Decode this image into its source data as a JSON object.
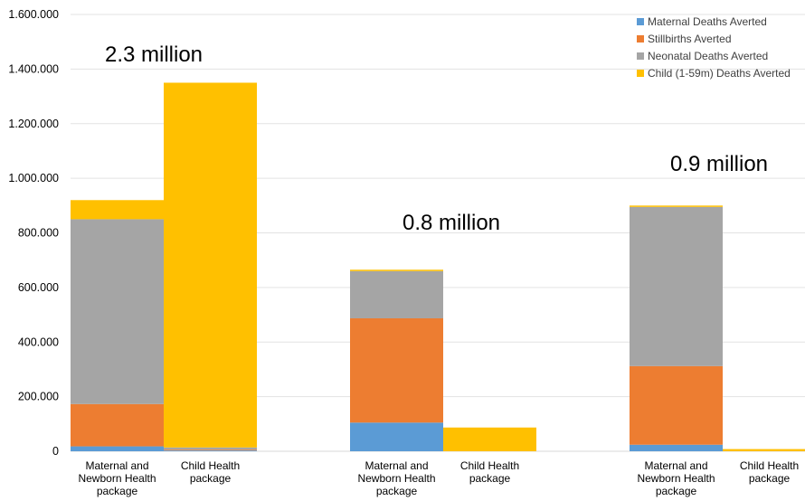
{
  "chart_data": {
    "type": "bar",
    "stacked": true,
    "title": "",
    "xlabel": "",
    "ylabel": "",
    "ylim": [
      0,
      1600000
    ],
    "y_ticks": [
      0,
      200000,
      400000,
      600000,
      800000,
      1000000,
      1200000,
      1400000,
      1600000
    ],
    "y_tick_labels": [
      "0",
      "200.000",
      "400.000",
      "600.000",
      "800.000",
      "1.000.000",
      "1.200.000",
      "1.400.000",
      "1.600.000"
    ],
    "grid": true,
    "legend_position": "top-right",
    "groups": [
      {
        "total_label": "2.3 million",
        "bars": [
          {
            "label": [
              "Maternal and",
              "Newborn Health",
              "package"
            ],
            "values": [
              18000,
              155000,
              677000,
              70000
            ]
          },
          {
            "label": [
              "Child Health",
              "package"
            ],
            "values": [
              3000,
              3000,
              8000,
              1336000
            ]
          }
        ]
      },
      {
        "total_label": "0.8 million",
        "bars": [
          {
            "label": [
              "Maternal and",
              "Newborn Health",
              "package"
            ],
            "values": [
              105000,
              382000,
              173000,
              5000
            ]
          },
          {
            "label": [
              "Child Health",
              "package"
            ],
            "values": [
              0,
              0,
              0,
              87000
            ]
          }
        ]
      },
      {
        "total_label": "0.9 million",
        "bars": [
          {
            "label": [
              "Maternal and",
              "Newborn Health",
              "package"
            ],
            "values": [
              24000,
              288000,
              583000,
              5000
            ]
          },
          {
            "label": [
              "Child Health",
              "package"
            ],
            "values": [
              0,
              0,
              0,
              8000
            ]
          }
        ]
      }
    ],
    "series": [
      {
        "name": "Maternal Deaths Averted",
        "color": "#5b9bd5"
      },
      {
        "name": "Stillbirths Averted",
        "color": "#ed7d31"
      },
      {
        "name": "Neonatal Deaths Averted",
        "color": "#a5a5a5"
      },
      {
        "name": "Child (1-59m) Deaths Averted",
        "color": "#ffc000"
      }
    ]
  }
}
